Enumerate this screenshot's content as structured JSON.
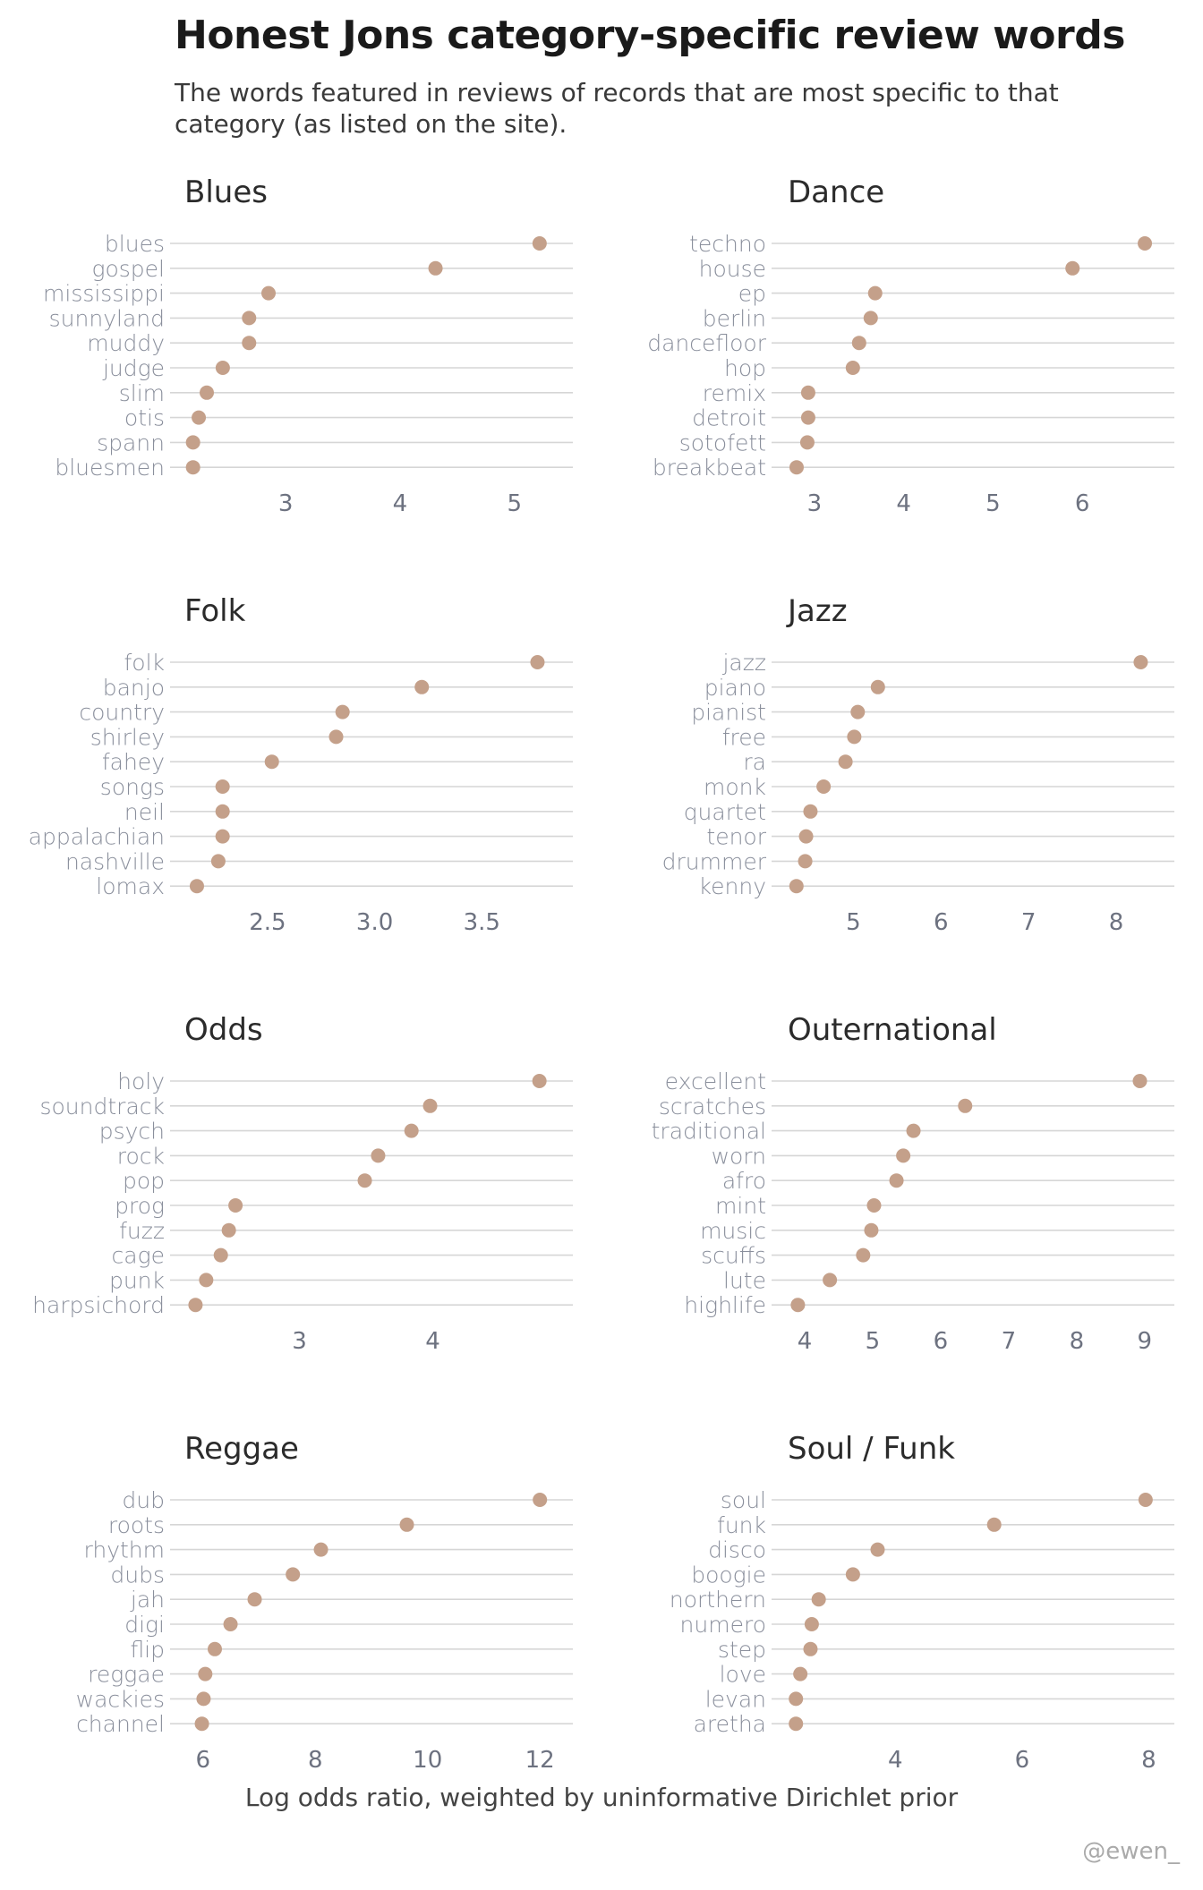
{
  "title": "Honest Jons category-specific review words",
  "subtitle": "The words featured in reviews of records that are most specific to that category (as listed on the site).",
  "xlabel": "Log odds ratio, weighted by uninformative Dirichlet prior",
  "credit": "@ewen_",
  "colors": {
    "dot": "#c4a08a",
    "grid": "#d6d6d6",
    "label": "#8a8f9c"
  },
  "chart_data": [
    {
      "type": "scatter",
      "title": "Blues",
      "categories": [
        "blues",
        "gospel",
        "mississippi",
        "sunnyland",
        "muddy",
        "judge",
        "slim",
        "otis",
        "spann",
        "bluesmen"
      ],
      "values": [
        5.22,
        4.31,
        2.85,
        2.68,
        2.68,
        2.45,
        2.31,
        2.24,
        2.19,
        2.19
      ],
      "xlim": [
        2.13,
        5.37
      ],
      "xticks": [
        3,
        4,
        5
      ]
    },
    {
      "type": "scatter",
      "title": "Dance",
      "categories": [
        "techno",
        "house",
        "ep",
        "berlin",
        "dancefloor",
        "hop",
        "remix",
        "detroit",
        "sotofett",
        "breakbeat"
      ],
      "values": [
        6.7,
        5.89,
        3.68,
        3.63,
        3.5,
        3.43,
        2.93,
        2.93,
        2.92,
        2.8
      ],
      "xlim": [
        2.7,
        6.85
      ],
      "xticks": [
        3,
        4,
        5,
        6
      ]
    },
    {
      "type": "scatter",
      "title": "Folk",
      "categories": [
        "folk",
        "banjo",
        "country",
        "shirley",
        "fahey",
        "songs",
        "neil",
        "appalachian",
        "nashville",
        "lomax"
      ],
      "values": [
        3.76,
        3.22,
        2.85,
        2.82,
        2.52,
        2.29,
        2.29,
        2.29,
        2.27,
        2.17
      ],
      "xlim": [
        2.12,
        3.85
      ],
      "xticks": [
        2.5,
        3.0,
        3.5
      ],
      "tick_labels": [
        "2.5",
        "3.0",
        "3.5"
      ]
    },
    {
      "type": "scatter",
      "title": "Jazz",
      "categories": [
        "jazz",
        "piano",
        "pianist",
        "free",
        "ra",
        "monk",
        "quartet",
        "tenor",
        "drummer",
        "kenny"
      ],
      "values": [
        8.28,
        5.28,
        5.05,
        5.01,
        4.91,
        4.66,
        4.51,
        4.46,
        4.45,
        4.35
      ],
      "xlim": [
        4.25,
        8.48
      ],
      "xticks": [
        5,
        6,
        7,
        8
      ]
    },
    {
      "type": "scatter",
      "title": "Odds",
      "categories": [
        "holy",
        "soundtrack",
        "psych",
        "rock",
        "pop",
        "prog",
        "fuzz",
        "cage",
        "punk",
        "harpsichord"
      ],
      "values": [
        4.8,
        3.98,
        3.84,
        3.59,
        3.49,
        2.52,
        2.47,
        2.41,
        2.3,
        2.22
      ],
      "xlim": [
        2.15,
        4.93
      ],
      "xticks": [
        3,
        4
      ]
    },
    {
      "type": "scatter",
      "title": "Outernational",
      "categories": [
        "excellent",
        "scratches",
        "traditional",
        "worn",
        "afro",
        "mint",
        "music",
        "scuffs",
        "lute",
        "highlife"
      ],
      "values": [
        8.93,
        6.36,
        5.6,
        5.45,
        5.35,
        5.02,
        4.98,
        4.86,
        4.37,
        3.9
      ],
      "xlim": [
        3.75,
        9.2
      ],
      "xticks": [
        4,
        5,
        6,
        7,
        8,
        9
      ]
    },
    {
      "type": "scatter",
      "title": "Reggae",
      "categories": [
        "dub",
        "roots",
        "rhythm",
        "dubs",
        "jah",
        "digi",
        "flip",
        "reggae",
        "wackies",
        "channel"
      ],
      "values": [
        12.0,
        9.63,
        8.1,
        7.6,
        6.92,
        6.49,
        6.21,
        6.04,
        6.01,
        5.98
      ],
      "xlim": [
        5.7,
        12.3
      ],
      "xticks": [
        6,
        8,
        10,
        12
      ]
    },
    {
      "type": "scatter",
      "title": "Soul / Funk",
      "categories": [
        "soul",
        "funk",
        "disco",
        "boogie",
        "northern",
        "numero",
        "step",
        "love",
        "levan",
        "aretha"
      ],
      "values": [
        7.95,
        5.56,
        3.72,
        3.33,
        2.79,
        2.68,
        2.66,
        2.5,
        2.43,
        2.43
      ],
      "xlim": [
        2.3,
        8.15
      ],
      "xticks": [
        4,
        6,
        8
      ]
    }
  ]
}
